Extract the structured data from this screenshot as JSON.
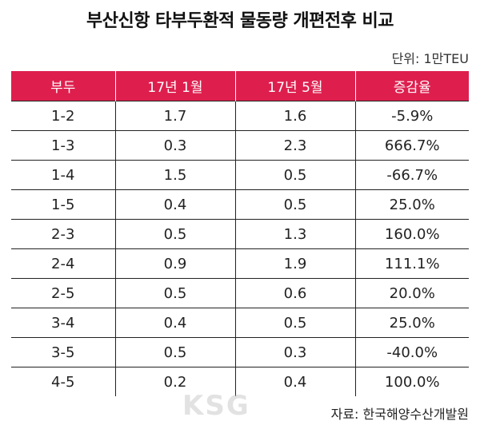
{
  "title": "부산신항 타부두환적 물동량 개편전후 비교",
  "unit": "단위: 1만TEU",
  "table": {
    "headers": [
      "부두",
      "17년 1월",
      "17년 5월",
      "증감율"
    ],
    "rows": [
      [
        "1-2",
        "1.7",
        "1.6",
        "-5.9%"
      ],
      [
        "1-3",
        "0.3",
        "2.3",
        "666.7%"
      ],
      [
        "1-4",
        "1.5",
        "0.5",
        "-66.7%"
      ],
      [
        "1-5",
        "0.4",
        "0.5",
        "25.0%"
      ],
      [
        "2-3",
        "0.5",
        "1.3",
        "160.0%"
      ],
      [
        "2-4",
        "0.9",
        "1.9",
        "111.1%"
      ],
      [
        "2-5",
        "0.5",
        "0.6",
        "20.0%"
      ],
      [
        "3-4",
        "0.4",
        "0.5",
        "25.0%"
      ],
      [
        "3-5",
        "0.5",
        "0.3",
        "-40.0%"
      ],
      [
        "4-5",
        "0.2",
        "0.4",
        "100.0%"
      ]
    ]
  },
  "source": "자료: 한국해양수산개발원",
  "watermark": "KSG",
  "colors": {
    "header_bg": "#de1f4e",
    "header_text": "#ffffff",
    "grid_line": "#222222"
  }
}
